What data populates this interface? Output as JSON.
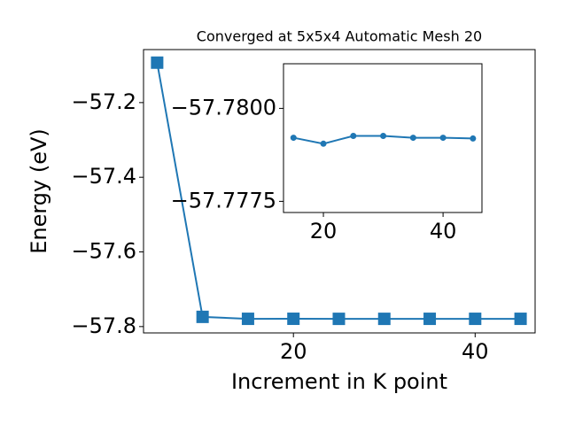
{
  "chart_data": [
    {
      "type": "line",
      "title": "Converged at 5x5x4 Automatic Mesh 20",
      "x_label": "Increment in K point",
      "y_label": "Energy (eV)",
      "x": [
        5,
        10,
        15,
        20,
        25,
        30,
        35,
        40,
        45
      ],
      "series": [
        {
          "color": "#1f77b4",
          "marker": "square",
          "values": [
            -57.093,
            -57.774,
            -57.7792,
            -57.7791,
            -57.7793,
            -57.7793,
            -57.7792,
            -57.7792,
            -57.7792
          ]
        }
      ],
      "xlim": [
        3.5,
        46.6
      ],
      "ylim": [
        -57.817,
        -57.058
      ],
      "xticks": [
        20,
        40
      ],
      "yticks": [
        {
          "value": -57.2,
          "label": "−57.2"
        },
        {
          "value": -57.4,
          "label": "−57.4"
        },
        {
          "value": -57.6,
          "label": "−57.6"
        },
        {
          "value": -57.8,
          "label": "−57.8"
        }
      ]
    },
    {
      "type": "line",
      "x": [
        15,
        20,
        25,
        30,
        35,
        40,
        45
      ],
      "series": [
        {
          "color": "#1f77b4",
          "marker": "circle",
          "values": [
            -57.77921,
            -57.77905,
            -57.77926,
            -57.77926,
            -57.77921,
            -57.77921,
            -57.77919
          ]
        }
      ],
      "xlim": [
        13.33,
        46.5
      ],
      "ylim": [
        -57.7772,
        -57.7812
      ],
      "xticks": [
        20,
        40
      ],
      "yticks": [
        {
          "value": -57.78,
          "label": "−57.7800"
        },
        {
          "value": -57.7775,
          "label": "−57.7775"
        }
      ]
    }
  ]
}
